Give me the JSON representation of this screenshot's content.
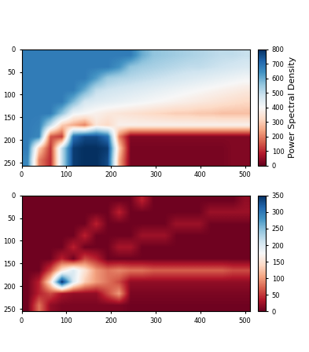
{
  "chart_data": [
    {
      "type": "heatmap",
      "color": "RdBu",
      "xlim": [
        0,
        512
      ],
      "ylim": [
        256,
        0
      ],
      "xticks": [
        0,
        100,
        200,
        300,
        400,
        500
      ],
      "yticks": [
        0,
        50,
        100,
        150,
        200,
        250
      ],
      "colorbar": {
        "label": "Power Spectral Density",
        "range": [
          0,
          800
        ],
        "ticks": [
          0,
          100,
          200,
          300,
          400,
          500,
          600,
          700,
          800
        ]
      },
      "cells": [
        [
          680,
          680,
          680,
          680,
          680,
          680,
          680,
          680,
          680,
          680,
          600,
          560,
          550,
          540,
          530,
          520,
          510,
          500,
          500,
          490
        ],
        [
          680,
          680,
          680,
          680,
          680,
          680,
          680,
          680,
          640,
          560,
          540,
          530,
          520,
          510,
          500,
          500,
          490,
          480,
          470,
          460
        ],
        [
          680,
          680,
          680,
          680,
          680,
          680,
          620,
          540,
          520,
          510,
          500,
          490,
          480,
          470,
          460,
          450,
          440,
          430,
          420,
          410
        ],
        [
          680,
          680,
          680,
          680,
          680,
          600,
          500,
          480,
          470,
          460,
          450,
          440,
          430,
          420,
          410,
          400,
          390,
          380,
          370,
          360
        ],
        [
          680,
          680,
          680,
          680,
          580,
          470,
          450,
          440,
          430,
          420,
          410,
          400,
          390,
          380,
          370,
          360,
          350,
          340,
          330,
          320
        ],
        [
          680,
          680,
          680,
          560,
          420,
          400,
          380,
          360,
          350,
          340,
          330,
          320,
          310,
          300,
          300,
          290,
          290,
          280,
          280,
          280
        ],
        [
          680,
          670,
          500,
          300,
          250,
          200,
          350,
          320,
          380,
          380,
          380,
          380,
          380,
          380,
          380,
          380,
          380,
          380,
          380,
          380
        ],
        [
          680,
          660,
          150,
          120,
          700,
          760,
          760,
          700,
          200,
          30,
          30,
          30,
          30,
          30,
          30,
          30,
          30,
          30,
          30,
          30
        ],
        [
          680,
          300,
          110,
          500,
          780,
          800,
          800,
          780,
          300,
          20,
          20,
          20,
          20,
          20,
          20,
          20,
          20,
          20,
          30,
          30
        ],
        [
          660,
          200,
          100,
          500,
          780,
          800,
          800,
          760,
          250,
          20,
          20,
          20,
          20,
          20,
          20,
          20,
          20,
          20,
          30,
          30
        ]
      ]
    },
    {
      "type": "heatmap",
      "color": "RdBu",
      "xlim": [
        0,
        512
      ],
      "ylim": [
        256,
        0
      ],
      "xticks": [
        0,
        100,
        200,
        300,
        400,
        500
      ],
      "yticks": [
        0,
        50,
        100,
        150,
        200,
        250
      ],
      "colorbar": {
        "range": [
          0,
          350
        ],
        "ticks": [
          0,
          50,
          100,
          150,
          200,
          250,
          300,
          350
        ]
      },
      "cells": [
        [
          5,
          5,
          5,
          5,
          5,
          5,
          5,
          5,
          5,
          5,
          40,
          5,
          5,
          5,
          5,
          5,
          5,
          5,
          5,
          20
        ],
        [
          5,
          5,
          5,
          5,
          5,
          5,
          5,
          5,
          40,
          5,
          5,
          5,
          5,
          5,
          5,
          5,
          25,
          25,
          25,
          25
        ],
        [
          5,
          5,
          5,
          5,
          5,
          5,
          40,
          5,
          5,
          5,
          5,
          5,
          5,
          25,
          25,
          25,
          5,
          5,
          5,
          5
        ],
        [
          5,
          5,
          5,
          5,
          5,
          40,
          5,
          5,
          5,
          5,
          25,
          25,
          25,
          5,
          5,
          5,
          5,
          5,
          5,
          5
        ],
        [
          5,
          5,
          5,
          5,
          40,
          5,
          5,
          5,
          30,
          30,
          5,
          5,
          5,
          5,
          5,
          5,
          5,
          5,
          5,
          5
        ],
        [
          5,
          5,
          5,
          40,
          5,
          60,
          40,
          5,
          5,
          5,
          5,
          5,
          5,
          5,
          5,
          5,
          5,
          5,
          5,
          5
        ],
        [
          5,
          5,
          60,
          150,
          200,
          150,
          100,
          80,
          90,
          80,
          80,
          70,
          70,
          70,
          70,
          70,
          70,
          70,
          60,
          60
        ],
        [
          5,
          40,
          150,
          350,
          200,
          130,
          100,
          80,
          60,
          20,
          20,
          20,
          20,
          20,
          20,
          20,
          20,
          20,
          20,
          20
        ],
        [
          5,
          40,
          60,
          30,
          20,
          20,
          20,
          60,
          100,
          10,
          10,
          10,
          10,
          10,
          10,
          10,
          10,
          10,
          10,
          10
        ],
        [
          5,
          80,
          20,
          10,
          10,
          10,
          10,
          10,
          10,
          5,
          5,
          5,
          5,
          5,
          5,
          5,
          5,
          5,
          5,
          5
        ]
      ]
    }
  ]
}
